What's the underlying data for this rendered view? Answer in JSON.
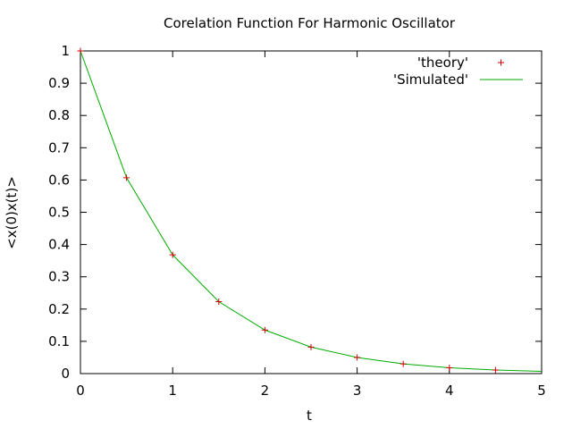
{
  "chart_data": {
    "type": "line",
    "title": "Corelation Function For Harmonic Oscillator",
    "xlabel": "t",
    "ylabel": "<x(0)x(t)>",
    "xlim": [
      0,
      5
    ],
    "ylim": [
      0,
      1
    ],
    "xticks": [
      "0",
      "1",
      "2",
      "3",
      "4",
      "5"
    ],
    "yticks": [
      "0",
      "0.1",
      "0.2",
      "0.3",
      "0.4",
      "0.5",
      "0.6",
      "0.7",
      "0.8",
      "0.9",
      "1"
    ],
    "legend_position": "top-right",
    "grid": false,
    "series": [
      {
        "name": "'theory'",
        "style": "points",
        "color": "#cc0000",
        "x": [
          0,
          0.5,
          1.0,
          1.5,
          2.0,
          2.5,
          3.0,
          3.5,
          4.0,
          4.5
        ],
        "y": [
          1.0,
          0.607,
          0.368,
          0.223,
          0.135,
          0.082,
          0.05,
          0.03,
          0.018,
          0.011
        ]
      },
      {
        "name": "'Simulated'",
        "style": "line",
        "color": "#00aa00",
        "x": [
          0,
          0.5,
          1.0,
          1.5,
          2.0,
          2.5,
          3.0,
          3.5,
          4.0,
          4.5,
          5.0
        ],
        "y": [
          1.0,
          0.607,
          0.368,
          0.223,
          0.135,
          0.082,
          0.05,
          0.03,
          0.018,
          0.011,
          0.007
        ]
      }
    ]
  }
}
